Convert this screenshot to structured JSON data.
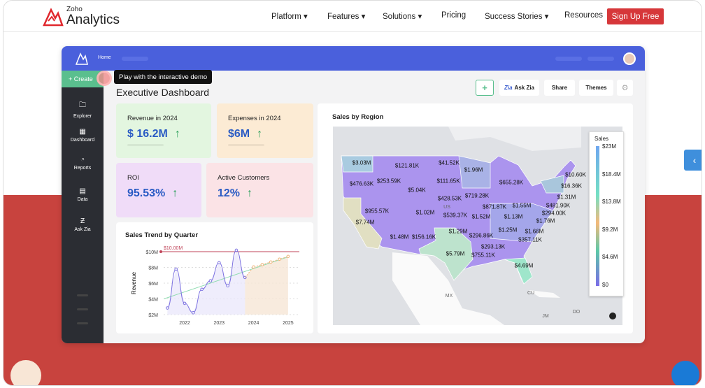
{
  "nav": {
    "logo_small": "Zoho",
    "logo_big": "Analytics",
    "items": [
      {
        "label": "Platform ▾"
      },
      {
        "label": "Features ▾"
      },
      {
        "label": "Solutions ▾"
      },
      {
        "label": "Pricing"
      },
      {
        "label": "Success Stories ▾"
      },
      {
        "label": "Resources"
      }
    ],
    "signup": "Sign Up Free"
  },
  "dashboard": {
    "breadcrumb": "Home",
    "create": "+ Create",
    "tooltip": "Play with the interactive demo",
    "title": "Executive Dashboard",
    "sidebar": [
      {
        "label": "Explorer",
        "icon": "folder-icon"
      },
      {
        "label": "Dashboard",
        "icon": "grid-icon"
      },
      {
        "label": "Reports",
        "icon": "pie-chart-icon"
      },
      {
        "label": "Data",
        "icon": "table-icon"
      },
      {
        "label": "Ask Zia",
        "icon": "zia-icon"
      }
    ],
    "toolbar": {
      "add": "+",
      "ask_zia": "Ask Zia",
      "zia_mark": "Zia",
      "share": "Share",
      "themes": "Themes",
      "settings": "⚙"
    },
    "kpis": [
      {
        "label": "Revenue in 2024",
        "value": "$ 16.2M",
        "color": "#e3f6e0"
      },
      {
        "label": "Expenses in 2024",
        "value": "$6M",
        "color": "#fcebd4"
      },
      {
        "label": "ROI",
        "value": "95.53%",
        "color": "#f0dcf8"
      },
      {
        "label": "Active Customers",
        "value": "12%",
        "color": "#fbe3e6"
      }
    ],
    "trend_arrow": "↑"
  },
  "chart_data": [
    {
      "type": "line",
      "title": "Sales Trend by Quarter",
      "ylabel": "Revenue",
      "ylim": [
        2,
        10
      ],
      "yticks": [
        "$2M",
        "$4M",
        "$6M",
        "$8M",
        "$10M"
      ],
      "xticks": [
        "2022",
        "2023",
        "2024",
        "2025"
      ],
      "target": {
        "value": 10,
        "label": "$10.00M",
        "color": "#c0455a"
      },
      "actual": {
        "x": [
          2021.5,
          2021.75,
          2022,
          2022.25,
          2022.5,
          2022.75,
          2023,
          2023.25,
          2023.5,
          2023.75
        ],
        "y": [
          2.84,
          7.79,
          3.43,
          2.24,
          5.22,
          6.3,
          8.6,
          5.67,
          10.18,
          6.72
        ],
        "color": "#7b70e0"
      },
      "forecast": {
        "x": [
          2023.75,
          2024,
          2024.25,
          2024.5,
          2024.75,
          2025
        ],
        "y": [
          6.72,
          8.06,
          8.36,
          8.69,
          9.04,
          9.4
        ],
        "color": "#f0b47a"
      },
      "trendline": {
        "x": [
          2021.4,
          2025
        ],
        "y": [
          4.0,
          9.34
        ],
        "color": "#8fdcb0"
      }
    },
    {
      "type": "heatmap",
      "title": "Sales by Region",
      "legend": {
        "title": "Sales",
        "ticks": [
          "$23M",
          "$18.4M",
          "$13.8M",
          "$9.2M",
          "$4.6M",
          "$0"
        ]
      },
      "geo_labels": [
        "US",
        "MX",
        "CU",
        "JM",
        "DO"
      ],
      "regions": [
        "$3.03M",
        "$121.81K",
        "$41.52K",
        "$1.96M",
        "$10.60K",
        "$476.63K",
        "$253.59K",
        "$111.65K",
        "$655.28K",
        "$16.36K",
        "$5.04K",
        "$719.28K",
        "$1.31M",
        "$428.53K",
        "$871.87K",
        "$1.55M",
        "$481.90K",
        "$955.57K",
        "$1.02M",
        "$539.37K",
        "$1.52M",
        "$1.13M",
        "$294.00K",
        "$7.74M",
        "$1.76M",
        "$1.29M",
        "$296.86K",
        "$1.25M",
        "$1.66M",
        "$1.48M",
        "$156.16K",
        "$357.11K",
        "$293.13K",
        "$5.79M",
        "$755.11K",
        "$4.69M"
      ]
    }
  ]
}
